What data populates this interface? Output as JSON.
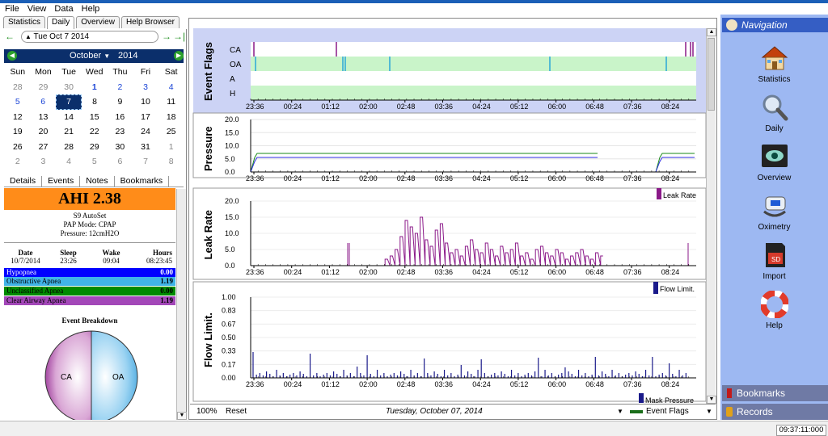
{
  "menu": [
    "File",
    "View",
    "Data",
    "Help"
  ],
  "tabs": [
    "Statistics",
    "Daily",
    "Overview",
    "Help Browser"
  ],
  "date_field": "Tue Oct 7 2014",
  "calendar": {
    "month": "October",
    "year": "2014",
    "weekdays": [
      "Sun",
      "Mon",
      "Tue",
      "Wed",
      "Thu",
      "Fri",
      "Sat"
    ],
    "weeks": [
      [
        "28",
        "29",
        "30",
        "1",
        "2",
        "3",
        "4"
      ],
      [
        "5",
        "6",
        "7",
        "8",
        "9",
        "10",
        "11"
      ],
      [
        "12",
        "13",
        "14",
        "15",
        "16",
        "17",
        "18"
      ],
      [
        "19",
        "20",
        "21",
        "22",
        "23",
        "24",
        "25"
      ],
      [
        "26",
        "27",
        "28",
        "29",
        "30",
        "31",
        "1"
      ],
      [
        "2",
        "3",
        "4",
        "5",
        "6",
        "7",
        "8"
      ]
    ]
  },
  "detail_tabs": [
    "Details",
    "Events",
    "Notes",
    "Bookmarks"
  ],
  "ahi": "AHI 2.38",
  "device": {
    "model": "S9 AutoSet",
    "mode": "PAP Mode: CPAP",
    "pressure": "Pressure: 12cmH2O"
  },
  "sleep_table": {
    "headers": [
      "Date",
      "Sleep",
      "Wake",
      "Hours"
    ],
    "row": [
      "10/7/2014",
      "23:26",
      "09:04",
      "08:23:45"
    ]
  },
  "events": [
    {
      "name": "Hypopnea",
      "value": "0.00",
      "color": "#0000ff"
    },
    {
      "name": "Obstructive Apnea",
      "value": "1.19",
      "color": "#40b4e8"
    },
    {
      "name": "Unclassified Apnea",
      "value": "0.00",
      "color": "#008a00"
    },
    {
      "name": "Clear Airway Apnea",
      "value": "1.19",
      "color": "#a347b8"
    }
  ],
  "pie": {
    "title": "Event Breakdown",
    "slices": [
      {
        "label": "CA",
        "value": 50,
        "color": "#8b1a89"
      },
      {
        "label": "OA",
        "value": 50,
        "color": "#3ea3dd"
      }
    ]
  },
  "time_ticks": [
    "23:36",
    "00:24",
    "01:12",
    "02:00",
    "02:48",
    "03:36",
    "04:24",
    "05:12",
    "06:00",
    "06:48",
    "07:36",
    "08:24"
  ],
  "plots": {
    "flags": {
      "label": "Event Flags",
      "rows": [
        "CA",
        "OA",
        "A",
        "H"
      ]
    },
    "pressure": {
      "label": "Pressure",
      "ticks": [
        "20.0",
        "15.0",
        "10.0",
        "5.0",
        "0.0"
      ]
    },
    "leak": {
      "label": "Leak Rate",
      "legend": "Leak Rate",
      "ticks": [
        "20.0",
        "15.0",
        "10.0",
        "5.0",
        "0.0"
      ]
    },
    "flow": {
      "label": "Flow Limit.",
      "legend": "Flow Limit.",
      "ticks": [
        "1.00",
        "0.83",
        "0.67",
        "0.50",
        "0.33",
        "0.17",
        "0.00"
      ]
    },
    "peek_legend": "Mask Pressure"
  },
  "bottom": {
    "zoom": "100%",
    "reset": "Reset",
    "date": "Tuesday, October 07, 2014",
    "graph_select": "Event Flags"
  },
  "nav": {
    "title": "Navigation",
    "items": [
      "Statistics",
      "Daily",
      "Overview",
      "Oximetry",
      "Import",
      "Help"
    ],
    "bookmarks": "Bookmarks",
    "records": "Records"
  },
  "clock": "09:37:11:000"
}
